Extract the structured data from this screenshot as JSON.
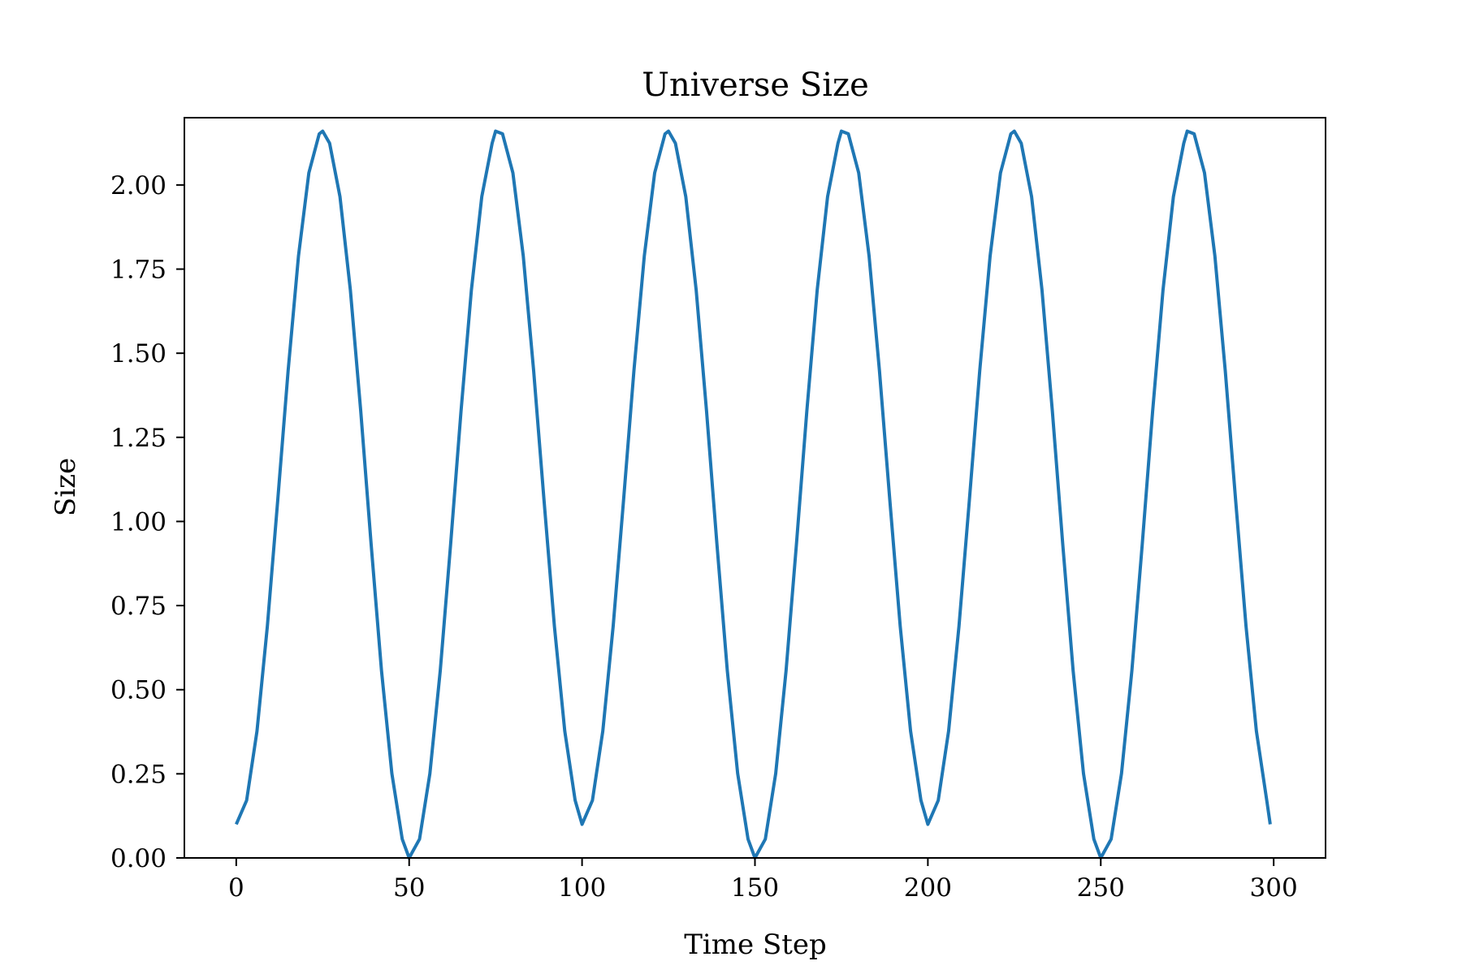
{
  "chart_data": {
    "type": "line",
    "title": "Universe Size",
    "xlabel": "Time Step",
    "ylabel": "Size",
    "xlim": [
      -15,
      315
    ],
    "ylim": [
      0,
      2.2
    ],
    "xticks": [
      0,
      50,
      100,
      150,
      200,
      250,
      300
    ],
    "xtick_labels": [
      "0",
      "50",
      "100",
      "150",
      "200",
      "250",
      "300"
    ],
    "yticks": [
      0,
      0.25,
      0.5,
      0.75,
      1.0,
      1.25,
      1.5,
      1.75,
      2.0
    ],
    "ytick_labels": [
      "0.00",
      "0.25",
      "0.50",
      "0.75",
      "1.00",
      "1.25",
      "1.50",
      "1.75",
      "2.00"
    ],
    "grid": false,
    "series": [
      {
        "color": "#1f77b4",
        "x": [
          0,
          3,
          6,
          9,
          12,
          15,
          18,
          21,
          24,
          25,
          27,
          30,
          33,
          36,
          39,
          42,
          45,
          48,
          50,
          53,
          56,
          59,
          62,
          65,
          68,
          71,
          74,
          75,
          77,
          80,
          83,
          86,
          89,
          92,
          95,
          98,
          100,
          103,
          106,
          109,
          112,
          115,
          118,
          121,
          124,
          125,
          127,
          130,
          133,
          136,
          139,
          142,
          145,
          148,
          150,
          153,
          156,
          159,
          162,
          165,
          168,
          171,
          174,
          175,
          177,
          180,
          183,
          186,
          189,
          192,
          195,
          198,
          200,
          203,
          206,
          209,
          212,
          215,
          218,
          221,
          224,
          225,
          227,
          230,
          233,
          236,
          239,
          242,
          245,
          248,
          250,
          253,
          256,
          259,
          262,
          265,
          268,
          271,
          274,
          275,
          277,
          280,
          283,
          286,
          289,
          292,
          295,
          298,
          299
        ],
        "y": [
          0.1,
          0.171,
          0.377,
          0.689,
          1.063,
          1.448,
          1.789,
          2.036,
          2.152,
          2.16,
          2.124,
          1.965,
          1.688,
          1.328,
          0.933,
          0.557,
          0.251,
          0.056,
          0.0,
          0.056,
          0.251,
          0.557,
          0.933,
          1.328,
          1.688,
          1.965,
          2.124,
          2.16,
          2.152,
          2.036,
          1.789,
          1.448,
          1.063,
          0.689,
          0.377,
          0.171,
          0.1,
          0.171,
          0.377,
          0.689,
          1.063,
          1.448,
          1.789,
          2.036,
          2.152,
          2.16,
          2.124,
          1.965,
          1.688,
          1.328,
          0.933,
          0.557,
          0.251,
          0.056,
          0.0,
          0.056,
          0.251,
          0.557,
          0.933,
          1.328,
          1.688,
          1.965,
          2.124,
          2.16,
          2.152,
          2.036,
          1.789,
          1.448,
          1.063,
          0.689,
          0.377,
          0.171,
          0.1,
          0.171,
          0.377,
          0.689,
          1.063,
          1.448,
          1.789,
          2.036,
          2.152,
          2.16,
          2.124,
          1.965,
          1.688,
          1.328,
          0.933,
          0.557,
          0.251,
          0.056,
          0.0,
          0.056,
          0.251,
          0.557,
          0.933,
          1.328,
          1.688,
          1.965,
          2.124,
          2.16,
          2.152,
          2.036,
          1.789,
          1.448,
          1.063,
          0.689,
          0.377,
          0.171,
          0.1
        ]
      }
    ]
  }
}
